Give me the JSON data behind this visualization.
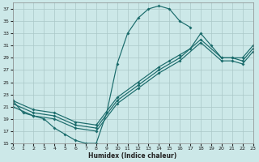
{
  "xlabel": "Humidex (Indice chaleur)",
  "bg_color": "#cce8e8",
  "grid_color": "#aac8c8",
  "line_color": "#1a6b6b",
  "xlim": [
    0,
    23
  ],
  "ylim": [
    15,
    38
  ],
  "xticks": [
    0,
    1,
    2,
    3,
    4,
    5,
    6,
    7,
    8,
    9,
    10,
    11,
    12,
    13,
    14,
    15,
    16,
    17,
    18,
    19,
    20,
    21,
    22,
    23
  ],
  "yticks": [
    15,
    17,
    19,
    21,
    23,
    25,
    27,
    29,
    31,
    33,
    35,
    37
  ],
  "line1_x": [
    0,
    1,
    2,
    3,
    4,
    5,
    6,
    7,
    8,
    9,
    10,
    11,
    12,
    13,
    14,
    15,
    16,
    17
  ],
  "line1_y": [
    22,
    20,
    19.5,
    19,
    17.5,
    16.5,
    15.5,
    15,
    15,
    20,
    28,
    33,
    35.5,
    37,
    37.5,
    37,
    35,
    34
  ],
  "line2_x": [
    0,
    2,
    4,
    6,
    8,
    10,
    12,
    14,
    15,
    16,
    17,
    18,
    19,
    20,
    21,
    22,
    23
  ],
  "line2_y": [
    22,
    20.5,
    20,
    18.5,
    18,
    22.5,
    25,
    27.5,
    28.5,
    29.5,
    30.5,
    33,
    31,
    29,
    29,
    29,
    31
  ],
  "line3_x": [
    0,
    2,
    4,
    6,
    8,
    10,
    12,
    14,
    16,
    18,
    20,
    21,
    22,
    23
  ],
  "line3_y": [
    21.5,
    20,
    19.5,
    18,
    17.5,
    22,
    24.5,
    27,
    29,
    32,
    29,
    29,
    28.5,
    30.5
  ],
  "line4_x": [
    0,
    2,
    4,
    6,
    8,
    10,
    12,
    14,
    16,
    18,
    20,
    21,
    22,
    23
  ],
  "line4_y": [
    21,
    19.5,
    19,
    17.5,
    17,
    21.5,
    24,
    26.5,
    28.5,
    31.5,
    28.5,
    28.5,
    28,
    30
  ]
}
